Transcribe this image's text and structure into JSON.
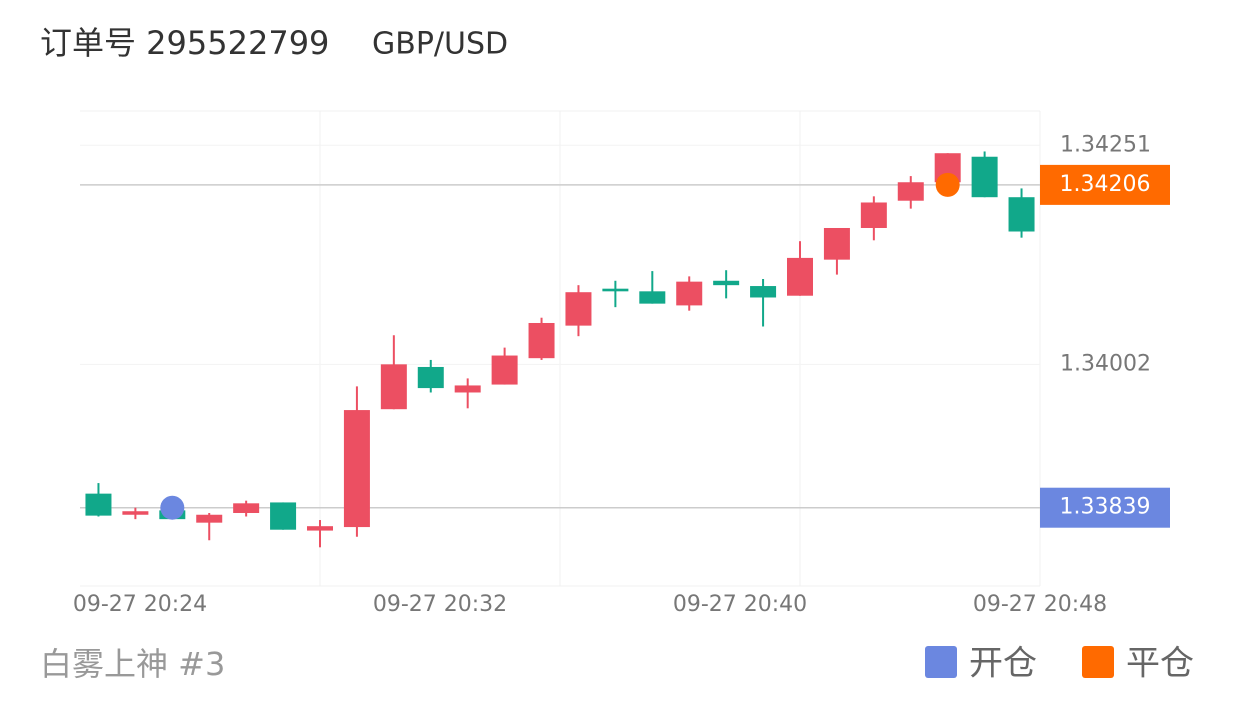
{
  "chart_data": {
    "type": "candlestick",
    "title": "订单号 295522799",
    "subtitle": "GBP/USD",
    "footer": "白雾上神 #3",
    "up_color": "#ec4f62",
    "down_color": "#11a88a",
    "x_labels": [
      "09-27 20:24",
      "09-27 20:32",
      "09-27 20:40",
      "09-27 20:48"
    ],
    "ylim": [
      1.3375,
      1.3429
    ],
    "yticks": [
      1.34251,
      1.34002
    ],
    "candles": [
      {
        "open": 1.33855,
        "high": 1.33867,
        "low": 1.33829,
        "close": 1.3383
      },
      {
        "open": 1.33831,
        "high": 1.33839,
        "low": 1.33826,
        "close": 1.33835
      },
      {
        "open": 1.33836,
        "high": 1.33836,
        "low": 1.33826,
        "close": 1.33826
      },
      {
        "open": 1.33822,
        "high": 1.33833,
        "low": 1.33802,
        "close": 1.33831
      },
      {
        "open": 1.33833,
        "high": 1.33847,
        "low": 1.33829,
        "close": 1.33844
      },
      {
        "open": 1.33845,
        "high": 1.33845,
        "low": 1.33814,
        "close": 1.33814
      },
      {
        "open": 1.33813,
        "high": 1.33825,
        "low": 1.33794,
        "close": 1.33818
      },
      {
        "open": 1.33817,
        "high": 1.33977,
        "low": 1.33806,
        "close": 1.3395
      },
      {
        "open": 1.33951,
        "high": 1.34035,
        "low": 1.33951,
        "close": 1.34002
      },
      {
        "open": 1.33999,
        "high": 1.34007,
        "low": 1.3397,
        "close": 1.33975
      },
      {
        "open": 1.3397,
        "high": 1.33986,
        "low": 1.33952,
        "close": 1.33978
      },
      {
        "open": 1.33979,
        "high": 1.34021,
        "low": 1.33979,
        "close": 1.34012
      },
      {
        "open": 1.34009,
        "high": 1.34055,
        "low": 1.34007,
        "close": 1.34049
      },
      {
        "open": 1.34046,
        "high": 1.34092,
        "low": 1.34034,
        "close": 1.34084
      },
      {
        "open": 1.34088,
        "high": 1.34097,
        "low": 1.34067,
        "close": 1.34085
      },
      {
        "open": 1.34085,
        "high": 1.34108,
        "low": 1.34071,
        "close": 1.34071
      },
      {
        "open": 1.34069,
        "high": 1.34102,
        "low": 1.34063,
        "close": 1.34096
      },
      {
        "open": 1.34097,
        "high": 1.34109,
        "low": 1.34077,
        "close": 1.34092
      },
      {
        "open": 1.34091,
        "high": 1.34099,
        "low": 1.34045,
        "close": 1.34078
      },
      {
        "open": 1.3408,
        "high": 1.34142,
        "low": 1.3408,
        "close": 1.34123
      },
      {
        "open": 1.34121,
        "high": 1.34157,
        "low": 1.34104,
        "close": 1.34157
      },
      {
        "open": 1.34157,
        "high": 1.34193,
        "low": 1.34143,
        "close": 1.34186
      },
      {
        "open": 1.34188,
        "high": 1.34216,
        "low": 1.34179,
        "close": 1.34209
      },
      {
        "open": 1.34209,
        "high": 1.34242,
        "low": 1.34199,
        "close": 1.34242
      },
      {
        "open": 1.34238,
        "high": 1.34244,
        "low": 1.34192,
        "close": 1.34192
      },
      {
        "open": 1.34192,
        "high": 1.34202,
        "low": 1.34146,
        "close": 1.34153
      }
    ],
    "series": [
      {
        "name": "开仓",
        "color": "#6b87e0",
        "values": [
          null,
          null,
          1.33839,
          null,
          null,
          null,
          null,
          null,
          null,
          null,
          null,
          null,
          null,
          null,
          null,
          null,
          null,
          null,
          null,
          null,
          null,
          null,
          null,
          null,
          null,
          null
        ]
      },
      {
        "name": "平仓",
        "color": "#ff6a00",
        "values": [
          null,
          null,
          null,
          null,
          null,
          null,
          null,
          null,
          null,
          null,
          null,
          null,
          null,
          null,
          null,
          null,
          null,
          null,
          null,
          null,
          null,
          null,
          null,
          1.34206,
          null,
          null
        ]
      }
    ],
    "price_lines": [
      {
        "value": 1.34206,
        "color": "#ff6a00"
      },
      {
        "value": 1.33839,
        "color": "#6b87e0"
      }
    ]
  }
}
